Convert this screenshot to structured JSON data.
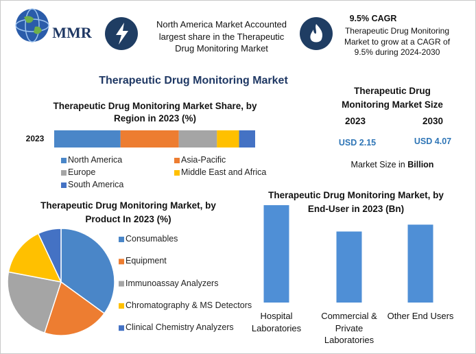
{
  "header": {
    "logo": "MMR",
    "info_1": "North America Market Accounted largest share in the Therapeutic Drug Monitoring Market",
    "info_2_title": "9.5% CAGR",
    "info_2": "Therapeutic Drug Monitoring Market to grow at a CAGR of 9.5% during 2024-2030"
  },
  "title": "Therapeutic Drug Monitoring Market",
  "market_size": {
    "title": "Therapeutic Drug Monitoring Market Size",
    "years": [
      "2023",
      "2030"
    ],
    "values": [
      "USD 2.15",
      "USD 4.07"
    ],
    "note": "Market Size in",
    "unit": "Billion"
  },
  "chart_data": [
    {
      "type": "bar",
      "orientation": "horizontal",
      "stacked": true,
      "title": "Therapeutic Drug Monitoring Market Share, by Region in 2023 (%)",
      "categories": [
        "2023"
      ],
      "xlim": [
        0,
        100
      ],
      "series": [
        {
          "name": "North America",
          "color": "#4a86c8",
          "values": [
            33
          ]
        },
        {
          "name": "Asia-Pacific",
          "color": "#ed7d31",
          "values": [
            29
          ]
        },
        {
          "name": "Europe",
          "color": "#a5a5a5",
          "values": [
            19
          ]
        },
        {
          "name": "Middle East and Africa",
          "color": "#ffc000",
          "values": [
            11
          ]
        },
        {
          "name": "South America",
          "color": "#4472c4",
          "values": [
            8
          ]
        }
      ]
    },
    {
      "type": "pie",
      "title": "Therapeutic Drug Monitoring Market, by Product In 2023 (%)",
      "categories": [
        "Consumables",
        "Equipment",
        "Immunoassay Analyzers",
        "Chromatography & MS Detectors",
        "Clinical Chemistry Analyzers"
      ],
      "values": [
        35,
        20,
        23,
        15,
        7
      ],
      "colors": [
        "#4a86c8",
        "#ed7d31",
        "#a5a5a5",
        "#ffc000",
        "#4472c4"
      ]
    },
    {
      "type": "bar",
      "title": "Therapeutic Drug Monitoring Market, by End-User in 2023 (Bn)",
      "categories": [
        "Hospital Laboratories",
        "Commercial & Private Laboratories",
        "Other End Users"
      ],
      "values": [
        0.85,
        0.62,
        0.68
      ],
      "color": "#4f8fd6"
    }
  ]
}
